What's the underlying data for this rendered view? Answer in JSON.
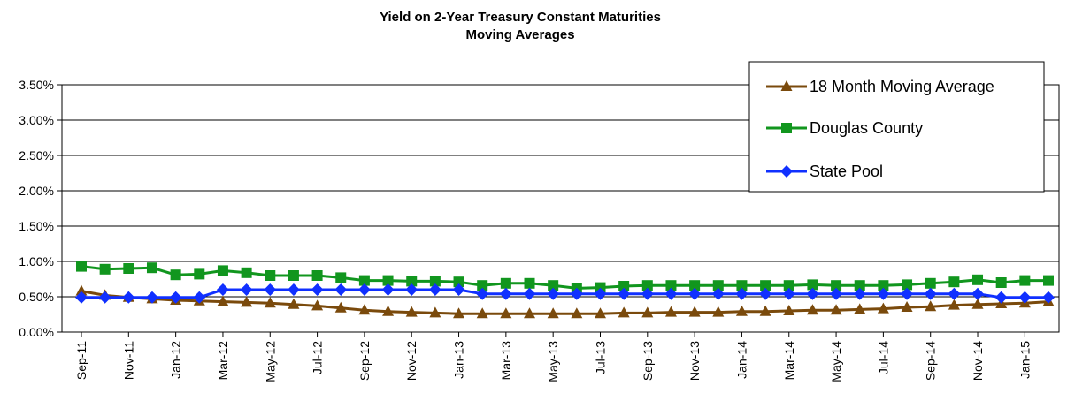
{
  "chart_data": {
    "type": "line",
    "title": "Yield on 2-Year Treasury Constant Maturities",
    "subtitle": "Moving Averages",
    "xlabel": "",
    "ylabel": "",
    "ylim": [
      0,
      0.035
    ],
    "y_ticks": [
      "0.00%",
      "0.50%",
      "1.00%",
      "1.50%",
      "2.00%",
      "2.50%",
      "3.00%",
      "3.50%"
    ],
    "x_tick_labels": [
      "Sep-11",
      "Nov-11",
      "Jan-12",
      "Mar-12",
      "May-12",
      "Jul-12",
      "Sep-12",
      "Nov-12",
      "Jan-13",
      "Mar-13",
      "May-13",
      "Jul-13",
      "Sep-13",
      "Nov-13",
      "Jan-14",
      "Mar-14",
      "May-14",
      "Jul-14",
      "Sep-14",
      "Nov-14",
      "Jan-15"
    ],
    "grid": true,
    "legend_position": "top-right",
    "colors": {
      "moving_average": "#7a4a0c",
      "douglas_county": "#11961e",
      "state_pool": "#1030ff",
      "grid": "#000000"
    },
    "series": [
      {
        "name": "18 Month Moving Average",
        "marker": "triangle",
        "values": [
          0.0058,
          0.0052,
          0.0049,
          0.0047,
          0.0045,
          0.0044,
          0.0043,
          0.0042,
          0.0041,
          0.0039,
          0.0037,
          0.0034,
          0.0031,
          0.0029,
          0.0028,
          0.0027,
          0.0026,
          0.0026,
          0.0026,
          0.0026,
          0.0026,
          0.0026,
          0.0026,
          0.0027,
          0.0027,
          0.0028,
          0.0028,
          0.0028,
          0.0029,
          0.0029,
          0.003,
          0.0031,
          0.0031,
          0.0032,
          0.0033,
          0.0035,
          0.0036,
          0.0038,
          0.0039,
          0.004,
          0.0041,
          0.0043
        ]
      },
      {
        "name": "Douglas County",
        "marker": "square",
        "values": [
          0.0093,
          0.0089,
          0.009,
          0.0091,
          0.0081,
          0.0082,
          0.0087,
          0.0084,
          0.008,
          0.008,
          0.008,
          0.0077,
          0.0073,
          0.0073,
          0.0072,
          0.0072,
          0.0071,
          0.0066,
          0.0069,
          0.0069,
          0.0066,
          0.0062,
          0.0063,
          0.0065,
          0.0066,
          0.0066,
          0.0066,
          0.0066,
          0.0066,
          0.0066,
          0.0066,
          0.0067,
          0.0066,
          0.0066,
          0.0066,
          0.0067,
          0.0069,
          0.0071,
          0.0074,
          0.007,
          0.0073,
          0.0073
        ]
      },
      {
        "name": "State Pool",
        "marker": "diamond",
        "values": [
          0.0049,
          0.0049,
          0.0049,
          0.0049,
          0.0049,
          0.0049,
          0.006,
          0.006,
          0.006,
          0.006,
          0.006,
          0.006,
          0.006,
          0.006,
          0.006,
          0.006,
          0.006,
          0.0054,
          0.0054,
          0.0054,
          0.0054,
          0.0054,
          0.0054,
          0.0054,
          0.0054,
          0.0054,
          0.0054,
          0.0054,
          0.0054,
          0.0054,
          0.0054,
          0.0054,
          0.0054,
          0.0054,
          0.0054,
          0.0054,
          0.0054,
          0.0054,
          0.0054,
          0.0049,
          0.0049,
          0.0049
        ]
      }
    ]
  }
}
